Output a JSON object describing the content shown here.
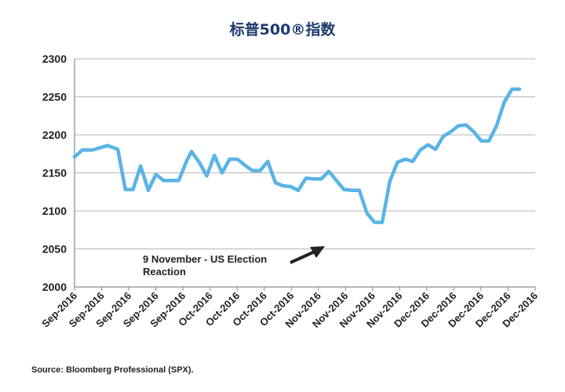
{
  "chart_data": {
    "type": "line",
    "title": "标普500®指数",
    "source": "Source: Bloomberg Professional (SPX).",
    "ylim": [
      2000,
      2300
    ],
    "yticks": [
      2000,
      2050,
      2100,
      2150,
      2200,
      2250,
      2300
    ],
    "grid": true,
    "xtick_labels": [
      "Sep-2016",
      "Sep-2016",
      "Sep-2016",
      "Sep-2016",
      "Sep-2016",
      "Oct-2016",
      "Oct-2016",
      "Oct-2016",
      "Oct-2016",
      "Nov-2016",
      "Nov-2016",
      "Nov-2016",
      "Nov-2016",
      "Dec-2016",
      "Dec-2016",
      "Dec-2016",
      "Dec-2016",
      "Dec-2016"
    ],
    "annotation": {
      "line1": "9 November - US Election",
      "line2": "Reaction"
    },
    "series": [
      {
        "color": "#5ab4e6",
        "x": [
          0,
          0.3,
          0.7,
          1.3,
          1.7,
          2.0,
          2.3,
          2.6,
          2.9,
          3.2,
          3.5,
          3.8,
          4.1,
          4.4,
          4.6,
          4.9,
          5.2,
          5.5,
          5.8,
          6.1,
          6.4,
          6.7,
          7.0,
          7.3,
          7.6,
          7.9,
          8.2,
          8.5,
          8.8,
          9.1,
          9.4,
          9.7,
          10.0,
          10.3,
          10.6,
          10.9,
          11.2,
          11.5,
          11.8,
          12.1,
          12.4,
          12.7,
          13.0,
          13.3,
          13.6,
          13.9,
          14.2,
          14.5,
          14.8,
          15.1,
          15.4,
          15.7,
          16.0,
          16.3,
          16.6,
          16.9,
          17.2,
          17.5
        ],
        "y": [
          2171,
          2180,
          2180,
          2186,
          2181,
          2128,
          2128,
          2159,
          2127,
          2148,
          2140,
          2140,
          2140,
          2165,
          2178,
          2164,
          2146,
          2173,
          2150,
          2168,
          2168,
          2160,
          2153,
          2153,
          2165,
          2137,
          2133,
          2132,
          2127,
          2143,
          2142,
          2142,
          2152,
          2140,
          2128,
          2127,
          2127,
          2097,
          2085,
          2085,
          2139,
          2164,
          2168,
          2165,
          2180,
          2187,
          2181,
          2198,
          2204,
          2212,
          2213,
          2204,
          2192,
          2192,
          2212,
          2243,
          2260,
          2260
        ],
        "note": "values at even ~weekly spacing"
      }
    ]
  }
}
